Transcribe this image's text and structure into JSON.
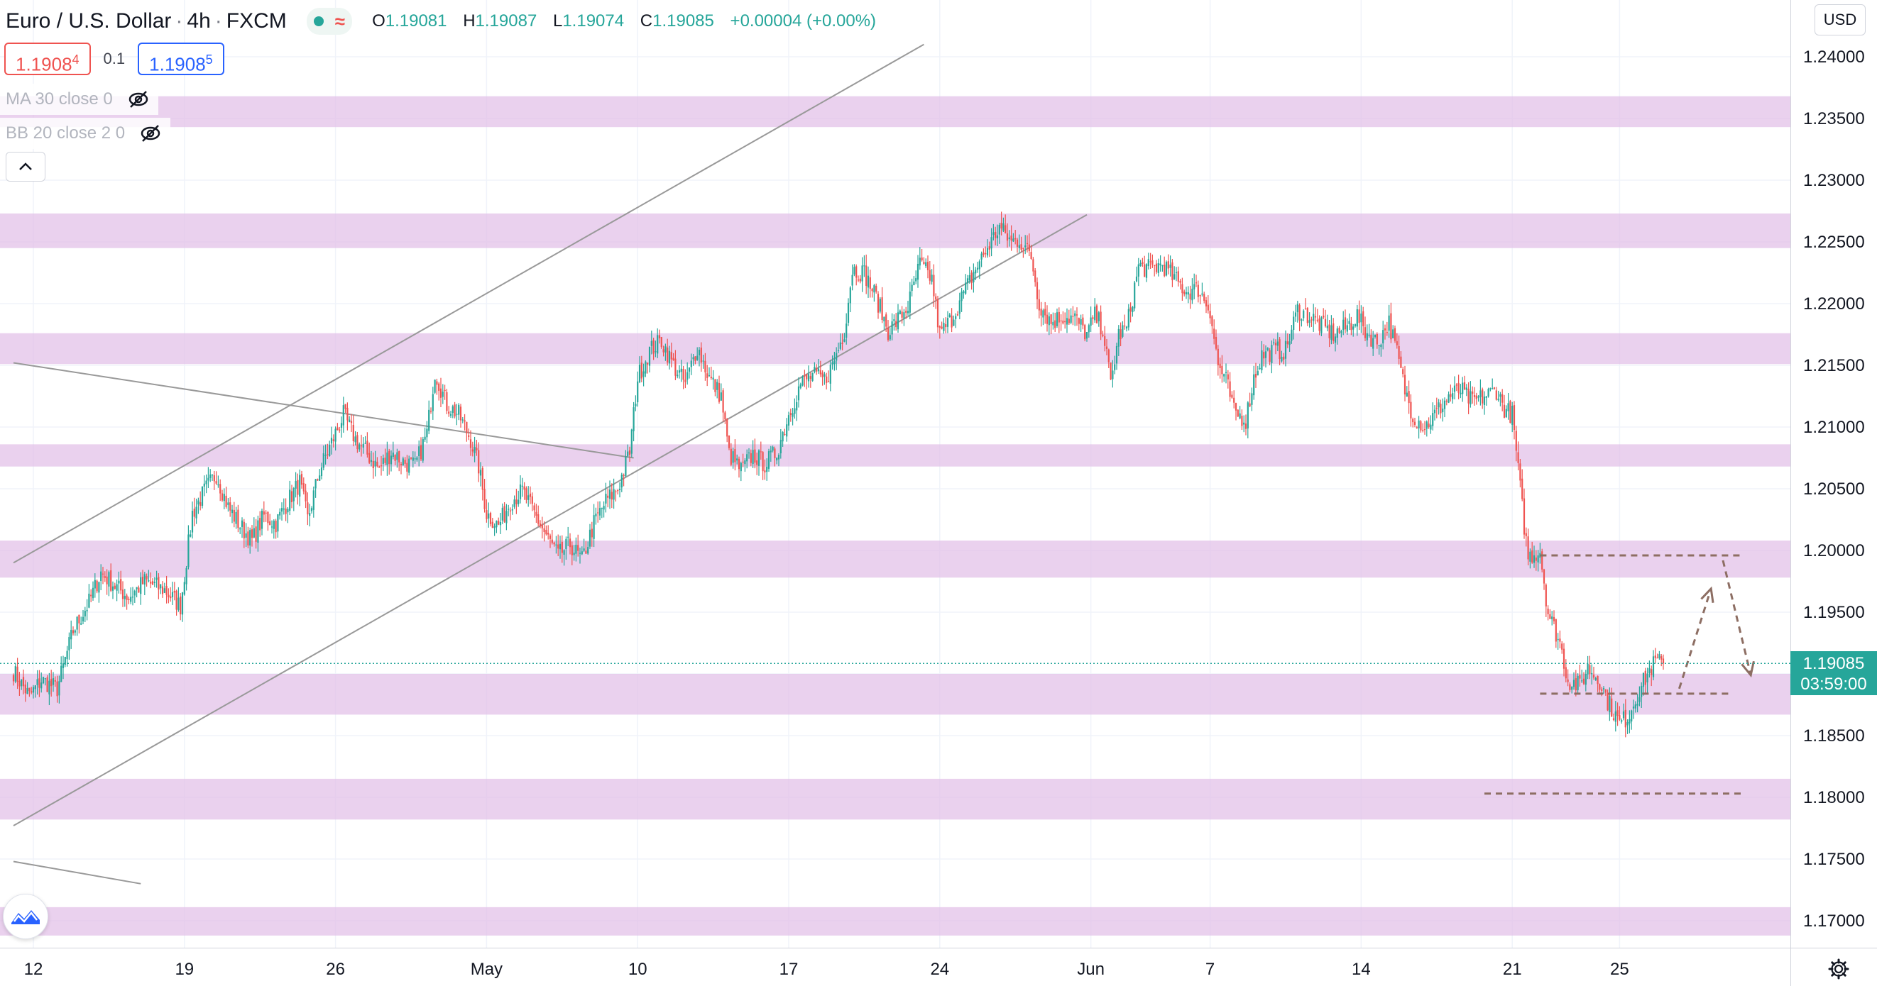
{
  "header": {
    "title": "Euro / U.S. Dollar",
    "interval": "4h",
    "exchange": "FXCM",
    "title_sep_1": "·",
    "title_sep_2": "·",
    "wave_glyph": "≈",
    "ohlc": {
      "o_label": "O",
      "o_value": "1.19081",
      "h_label": "H",
      "h_value": "1.19087",
      "l_label": "L",
      "l_value": "1.19074",
      "c_label": "C",
      "c_value": "1.19085",
      "change": "+0.00004 (+0.00%)"
    }
  },
  "trade": {
    "sell_main": "1.1908",
    "sell_sup": "4",
    "spread": "0.1",
    "buy_main": "1.1908",
    "buy_sup": "5"
  },
  "indicators": [
    {
      "label": "MA 30 close 0",
      "icon": "eye-off-icon"
    },
    {
      "label": "BB 20 close 2 0",
      "icon": "eye-off-icon"
    }
  ],
  "collapse_icon": "chevron-up-icon",
  "currency": "USD",
  "last_price": {
    "price": "1.19085",
    "countdown": "03:59:00"
  },
  "colors": {
    "up": "#26a69a",
    "down": "#ef5350",
    "zone": "#e1bee7",
    "trendline": "#999999",
    "projection": "#8d6e63",
    "grid": "#f0f3fa"
  },
  "chart_data": {
    "type": "candlestick",
    "symbol": "EURUSD",
    "timeframe": "4h",
    "y_axis": {
      "ticks": [
        "1.24000",
        "1.23500",
        "1.23000",
        "1.22500",
        "1.22000",
        "1.21500",
        "1.21000",
        "1.20500",
        "1.20000",
        "1.19500",
        "1.19000",
        "1.18500",
        "1.18000",
        "1.17500",
        "1.17000"
      ],
      "range": [
        1.1675,
        1.2435
      ]
    },
    "x_axis": {
      "ticks": [
        "12",
        "19",
        "26",
        "May",
        "10",
        "17",
        "24",
        "Jun",
        "7",
        "14",
        "21",
        "25"
      ],
      "tick_bars": [
        10,
        86,
        162,
        238,
        314,
        390,
        466,
        542,
        602,
        678,
        754,
        808
      ]
    },
    "price_path": [
      [
        0,
        1.1902
      ],
      [
        8,
        1.1882
      ],
      [
        14,
        1.1895
      ],
      [
        22,
        1.1888
      ],
      [
        30,
        1.1935
      ],
      [
        38,
        1.1958
      ],
      [
        44,
        1.1982
      ],
      [
        52,
        1.197
      ],
      [
        58,
        1.1962
      ],
      [
        66,
        1.1975
      ],
      [
        76,
        1.1968
      ],
      [
        84,
        1.1955
      ],
      [
        90,
        1.203
      ],
      [
        96,
        1.2048
      ],
      [
        102,
        1.2062
      ],
      [
        108,
        1.2035
      ],
      [
        114,
        1.202
      ],
      [
        120,
        1.2008
      ],
      [
        126,
        1.2028
      ],
      [
        132,
        1.2022
      ],
      [
        138,
        1.204
      ],
      [
        144,
        1.2055
      ],
      [
        148,
        1.2025
      ],
      [
        154,
        1.2065
      ],
      [
        158,
        1.208
      ],
      [
        162,
        1.2095
      ],
      [
        166,
        1.211
      ],
      [
        172,
        1.209
      ],
      [
        178,
        1.2078
      ],
      [
        184,
        1.2066
      ],
      [
        190,
        1.208
      ],
      [
        196,
        1.2072
      ],
      [
        202,
        1.2068
      ],
      [
        208,
        1.2095
      ],
      [
        212,
        1.2145
      ],
      [
        218,
        1.2118
      ],
      [
        224,
        1.211
      ],
      [
        230,
        1.209
      ],
      [
        234,
        1.2068
      ],
      [
        238,
        1.203
      ],
      [
        244,
        1.202
      ],
      [
        250,
        1.204
      ],
      [
        256,
        1.2048
      ],
      [
        262,
        1.203
      ],
      [
        268,
        1.2012
      ],
      [
        274,
        1.1996
      ],
      [
        280,
        1.2005
      ],
      [
        286,
        1.1992
      ],
      [
        292,
        1.2022
      ],
      [
        298,
        1.204
      ],
      [
        304,
        1.205
      ],
      [
        310,
        1.208
      ],
      [
        314,
        1.214
      ],
      [
        320,
        1.2162
      ],
      [
        326,
        1.217
      ],
      [
        332,
        1.215
      ],
      [
        338,
        1.2135
      ],
      [
        344,
        1.2165
      ],
      [
        350,
        1.214
      ],
      [
        356,
        1.2125
      ],
      [
        360,
        1.2078
      ],
      [
        366,
        1.2065
      ],
      [
        372,
        1.2078
      ],
      [
        378,
        1.207
      ],
      [
        384,
        1.208
      ],
      [
        390,
        1.211
      ],
      [
        396,
        1.2135
      ],
      [
        402,
        1.2142
      ],
      [
        408,
        1.2138
      ],
      [
        412,
        1.215
      ],
      [
        418,
        1.2178
      ],
      [
        422,
        1.2228
      ],
      [
        428,
        1.2225
      ],
      [
        434,
        1.2205
      ],
      [
        440,
        1.2178
      ],
      [
        444,
        1.2185
      ],
      [
        450,
        1.2198
      ],
      [
        456,
        1.2232
      ],
      [
        462,
        1.222
      ],
      [
        466,
        1.2175
      ],
      [
        472,
        1.2188
      ],
      [
        478,
        1.2208
      ],
      [
        484,
        1.2228
      ],
      [
        490,
        1.2245
      ],
      [
        496,
        1.2262
      ],
      [
        502,
        1.225
      ],
      [
        506,
        1.2252
      ],
      [
        512,
        1.2238
      ],
      [
        516,
        1.22
      ],
      [
        522,
        1.2185
      ],
      [
        528,
        1.219
      ],
      [
        534,
        1.2188
      ],
      [
        540,
        1.2175
      ],
      [
        544,
        1.219
      ],
      [
        548,
        1.218
      ],
      [
        552,
        1.2135
      ],
      [
        556,
        1.2175
      ],
      [
        560,
        1.218
      ],
      [
        566,
        1.223
      ],
      [
        572,
        1.2228
      ],
      [
        578,
        1.2232
      ],
      [
        584,
        1.222
      ],
      [
        590,
        1.221
      ],
      [
        596,
        1.2212
      ],
      [
        602,
        1.2195
      ],
      [
        606,
        1.215
      ],
      [
        610,
        1.2138
      ],
      [
        614,
        1.2112
      ],
      [
        620,
        1.2106
      ],
      [
        624,
        1.214
      ],
      [
        628,
        1.2158
      ],
      [
        634,
        1.2162
      ],
      [
        640,
        1.2162
      ],
      [
        646,
        1.2195
      ],
      [
        652,
        1.219
      ],
      [
        658,
        1.2182
      ],
      [
        664,
        1.2175
      ],
      [
        670,
        1.218
      ],
      [
        676,
        1.219
      ],
      [
        680,
        1.2178
      ],
      [
        686,
        1.2168
      ],
      [
        692,
        1.2185
      ],
      [
        696,
        1.216
      ],
      [
        700,
        1.213
      ],
      [
        704,
        1.211
      ],
      [
        710,
        1.21
      ],
      [
        716,
        1.2112
      ],
      [
        722,
        1.2125
      ],
      [
        728,
        1.213
      ],
      [
        734,
        1.212
      ],
      [
        740,
        1.2125
      ],
      [
        746,
        1.213
      ],
      [
        750,
        1.2115
      ],
      [
        754,
        1.211
      ],
      [
        760,
        1.202
      ],
      [
        762,
        1.1995
      ],
      [
        768,
        1.2
      ],
      [
        772,
        1.195
      ],
      [
        778,
        1.1925
      ],
      [
        782,
        1.1895
      ],
      [
        788,
        1.189
      ],
      [
        792,
        1.1905
      ],
      [
        798,
        1.1895
      ],
      [
        802,
        1.1878
      ],
      [
        808,
        1.186
      ],
      [
        812,
        1.1865
      ],
      [
        816,
        1.188
      ],
      [
        822,
        1.19
      ],
      [
        826,
        1.191
      ],
      [
        830,
        1.1908
      ]
    ],
    "zones": [
      [
        1.2343,
        1.2368
      ],
      [
        1.2245,
        1.2273
      ],
      [
        1.2151,
        1.2176
      ],
      [
        1.2068,
        1.2086
      ],
      [
        1.1978,
        1.2008
      ],
      [
        1.1867,
        1.19
      ],
      [
        1.1782,
        1.1815
      ],
      [
        1.1688,
        1.1711
      ]
    ],
    "trendlines": [
      {
        "from": [
          0,
          1.199
        ],
        "to": [
          458,
          1.241
        ]
      },
      {
        "from": [
          0,
          1.1777
        ],
        "to": [
          540,
          1.2272
        ]
      },
      {
        "from": [
          0,
          1.2152
        ],
        "to": [
          312,
          1.2075
        ]
      },
      {
        "from": [
          0,
          1.1748
        ],
        "to": [
          64,
          1.173
        ]
      }
    ],
    "projection_levels": [
      {
        "price": 1.1996,
        "from_bar": 768,
        "to_bar": 870
      },
      {
        "price": 1.1884,
        "from_bar": 768,
        "to_bar": 865
      },
      {
        "price": 1.1803,
        "from_bar": 740,
        "to_bar": 870
      }
    ],
    "projection_path": [
      [
        838,
        1.1888
      ],
      [
        854,
        1.1969
      ],
      [
        860,
        1.1992
      ],
      [
        874,
        1.1899
      ]
    ],
    "last_price": 1.19085
  }
}
